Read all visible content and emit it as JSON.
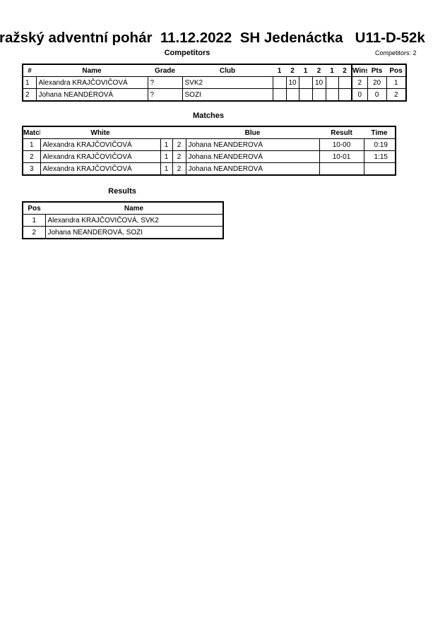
{
  "title": "ražský adventní pohár  11.12.2022  SH Jedenáctka   U11-D-52k",
  "competitors": {
    "heading": "Competitors",
    "count": "Competitors: 2",
    "headers": [
      "#",
      "Name",
      "Grade",
      "Club",
      "1",
      "2",
      "1",
      "2",
      "1",
      "2",
      "Wins",
      "Pts",
      "Pos"
    ],
    "rows": [
      [
        "1",
        "Alexandra KRAJČOVIČOVÁ",
        "?",
        "SVK2",
        "",
        "10",
        "",
        "10",
        "",
        "",
        "2",
        "20",
        "1"
      ],
      [
        "2",
        "Johana NEANDEROVÁ",
        "?",
        "SOZI",
        "",
        "",
        "",
        "",
        "",
        "",
        "0",
        "0",
        "2"
      ]
    ]
  },
  "matches": {
    "heading": "Matches",
    "headers": [
      "Match",
      "White",
      "",
      "",
      "Blue",
      "Result",
      "Time"
    ],
    "rows": [
      [
        "1",
        "Alexandra KRAJČOVIČOVÁ",
        "1",
        "2",
        "Johana NEANDEROVÁ",
        "10-00",
        "0:19"
      ],
      [
        "2",
        "Alexandra KRAJČOVIČOVÁ",
        "1",
        "2",
        "Johana NEANDEROVÁ",
        "10-01",
        "1:15"
      ],
      [
        "3",
        "Alexandra KRAJČOVIČOVÁ",
        "1",
        "2",
        "Johana NEANDEROVÁ",
        "",
        ""
      ]
    ]
  },
  "results": {
    "heading": "Results",
    "headers": [
      "Pos",
      "Name"
    ],
    "rows": [
      [
        "1",
        "Alexandra KRAJČOVIČOVÁ, SVK2"
      ],
      [
        "2",
        "Johana NEANDEROVÁ, SOZI"
      ]
    ]
  }
}
